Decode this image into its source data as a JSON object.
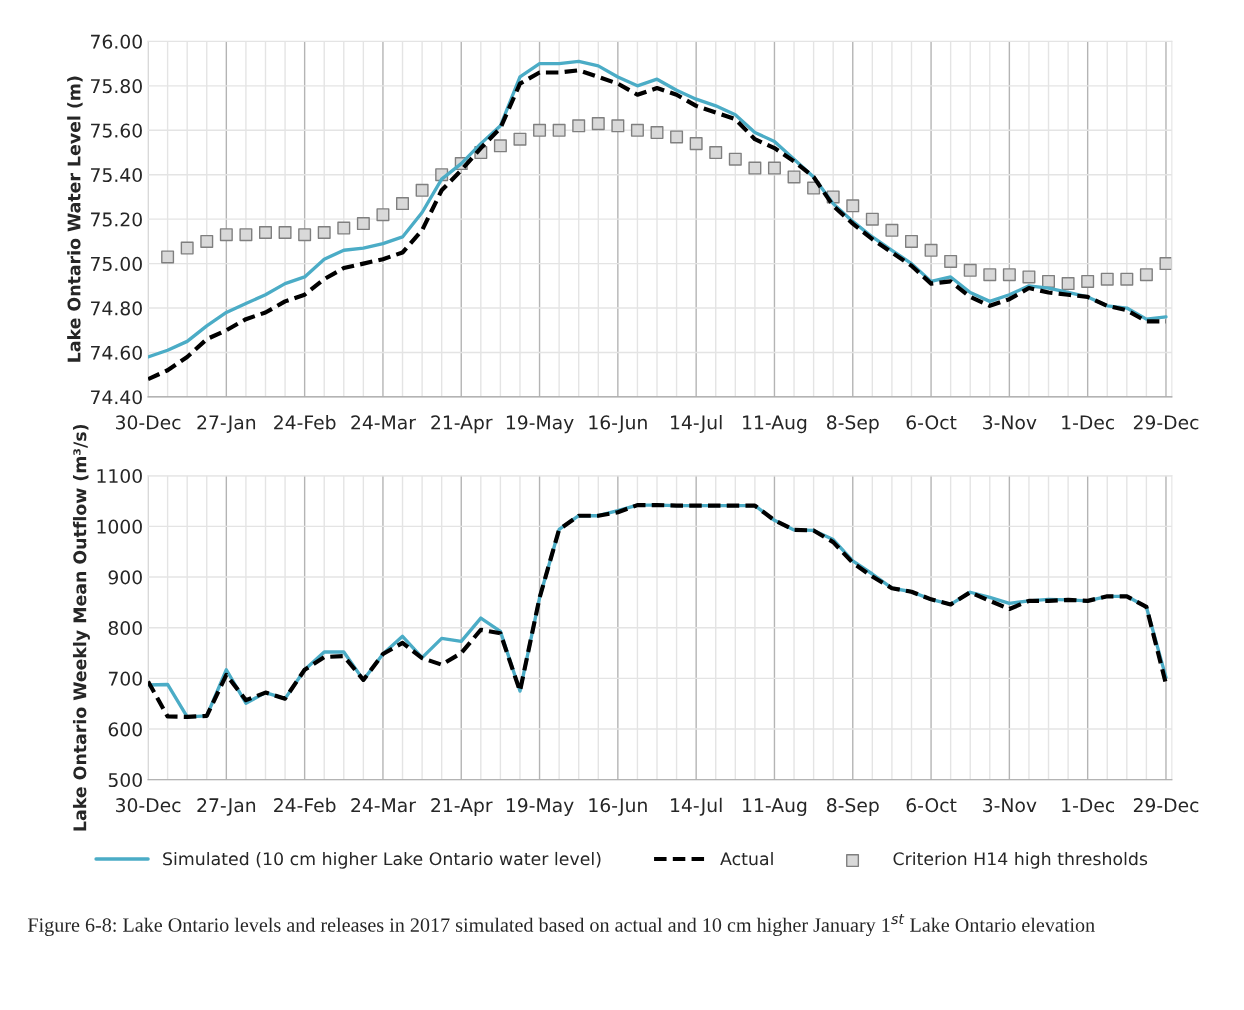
{
  "chart_data": [
    {
      "type": "line",
      "ylabel": "Lake Ontario Water Level (m)",
      "categories": [
        "30-Dec",
        null,
        null,
        null,
        "27-Jan",
        null,
        null,
        null,
        "24-Feb",
        null,
        null,
        null,
        "24-Mar",
        null,
        null,
        null,
        "21-Apr",
        null,
        null,
        null,
        "19-May",
        null,
        null,
        null,
        "16-Jun",
        null,
        null,
        null,
        "14-Jul",
        null,
        null,
        null,
        "11-Aug",
        null,
        null,
        null,
        "8-Sep",
        null,
        null,
        null,
        "6-Oct",
        null,
        null,
        null,
        "3-Nov",
        null,
        null,
        null,
        "1-Dec",
        null,
        null,
        null,
        "29-Dec"
      ],
      "ylim": [
        74.4,
        76.0
      ],
      "yticks": [
        {
          "value": 74.4,
          "label": "74.40"
        },
        {
          "value": 74.6,
          "label": "74.60"
        },
        {
          "value": 74.8,
          "label": "74.80"
        },
        {
          "value": 75.0,
          "label": "75.00"
        },
        {
          "value": 75.2,
          "label": "75.20"
        },
        {
          "value": 75.4,
          "label": "75.40"
        },
        {
          "value": 75.6,
          "label": "75.60"
        },
        {
          "value": 75.8,
          "label": "75.80"
        },
        {
          "value": 76.0,
          "label": "76.00"
        }
      ],
      "grid": true,
      "legend": "bottom",
      "series": [
        {
          "name": "Simulated (10 cm higher Lake Ontario water level)",
          "color": "#4bacc6",
          "line_style": "solid",
          "values": [
            74.58,
            74.61,
            74.65,
            74.72,
            74.78,
            74.82,
            74.86,
            74.91,
            74.94,
            75.02,
            75.06,
            75.07,
            75.09,
            75.12,
            75.23,
            75.38,
            75.45,
            75.54,
            75.62,
            75.84,
            75.9,
            75.9,
            75.91,
            75.89,
            75.84,
            75.8,
            75.83,
            75.78,
            75.74,
            75.71,
            75.67,
            75.59,
            75.55,
            75.47,
            75.39,
            75.27,
            75.19,
            75.12,
            75.06,
            75.0,
            74.92,
            74.94,
            74.87,
            74.83,
            74.86,
            74.9,
            74.89,
            74.87,
            74.85,
            74.81,
            74.8,
            74.75,
            74.76
          ]
        },
        {
          "name": "Actual",
          "color": "#000000",
          "line_style": "dashed",
          "values": [
            74.48,
            74.52,
            74.58,
            74.66,
            74.7,
            74.75,
            74.78,
            74.83,
            74.86,
            74.93,
            74.98,
            75.0,
            75.02,
            75.05,
            75.15,
            75.33,
            75.42,
            75.52,
            75.61,
            75.81,
            75.86,
            75.86,
            75.87,
            75.84,
            75.81,
            75.76,
            75.79,
            75.76,
            75.71,
            75.68,
            75.65,
            75.56,
            75.52,
            75.46,
            75.39,
            75.26,
            75.18,
            75.11,
            75.05,
            74.99,
            74.91,
            74.92,
            74.85,
            74.81,
            74.84,
            74.89,
            74.87,
            74.86,
            74.85,
            74.81,
            74.79,
            74.74,
            74.74
          ]
        },
        {
          "name": "Criterion H14 high thresholds",
          "color": "#d9d9d9",
          "type": "scatter",
          "marker": "square",
          "values": [
            null,
            75.03,
            75.07,
            75.1,
            75.13,
            75.13,
            75.14,
            75.14,
            75.13,
            75.14,
            75.16,
            75.18,
            75.22,
            75.27,
            75.33,
            75.4,
            75.45,
            75.5,
            75.53,
            75.56,
            75.6,
            75.6,
            75.62,
            75.63,
            75.62,
            75.6,
            75.59,
            75.57,
            75.54,
            75.5,
            75.47,
            75.43,
            75.43,
            75.39,
            75.34,
            75.3,
            75.26,
            75.2,
            75.15,
            75.1,
            75.06,
            75.01,
            74.97,
            74.95,
            74.95,
            74.94,
            74.92,
            74.91,
            74.92,
            74.93,
            74.93,
            74.95,
            75.0
          ]
        }
      ]
    },
    {
      "type": "line",
      "ylabel": "Lake Ontario Weekly Mean Outflow (m³/s)",
      "categories": [
        "30-Dec",
        null,
        null,
        null,
        "27-Jan",
        null,
        null,
        null,
        "24-Feb",
        null,
        null,
        null,
        "24-Mar",
        null,
        null,
        null,
        "21-Apr",
        null,
        null,
        null,
        "19-May",
        null,
        null,
        null,
        "16-Jun",
        null,
        null,
        null,
        "14-Jul",
        null,
        null,
        null,
        "11-Aug",
        null,
        null,
        null,
        "8-Sep",
        null,
        null,
        null,
        "6-Oct",
        null,
        null,
        null,
        "3-Nov",
        null,
        null,
        null,
        "1-Dec",
        null,
        null,
        null,
        "29-Dec"
      ],
      "ylim": [
        500,
        1100
      ],
      "yticks": [
        500,
        600,
        700,
        800,
        900,
        1000,
        1100
      ],
      "grid": true,
      "annotations": [
        "Figure 6-8: Lake Ontario levels and releases in 2017 simulated based on actual and 10 cm higher January 1$^{st}$ Lake Ontario elevation"
      ],
      "series": [
        {
          "color": "#4bacc6",
          "line_style": "solid",
          "values": [
            687,
            688,
            624,
            626,
            717,
            651,
            672,
            660,
            717,
            752,
            752,
            697,
            748,
            783,
            741,
            779,
            773,
            819,
            793,
            675,
            859,
            994,
            1021,
            1021,
            1031,
            1042,
            1042,
            1041,
            1041,
            1041,
            1041,
            1041,
            1012,
            993,
            992,
            974,
            932,
            906,
            878,
            871,
            856,
            846,
            870,
            860,
            848,
            853,
            856,
            855,
            853,
            862,
            862,
            841,
            702
          ]
        },
        {
          "color": "#000000",
          "line_style": "dashed",
          "values": [
            694,
            625,
            624,
            626,
            707,
            657,
            672,
            660,
            717,
            742,
            744,
            697,
            748,
            770,
            740,
            727,
            750,
            796,
            789,
            675,
            859,
            994,
            1021,
            1021,
            1028,
            1042,
            1042,
            1041,
            1041,
            1041,
            1041,
            1041,
            1012,
            993,
            992,
            969,
            928,
            901,
            878,
            871,
            856,
            846,
            870,
            853,
            837,
            853,
            853,
            855,
            853,
            862,
            862,
            841,
            689
          ]
        }
      ]
    }
  ]
}
